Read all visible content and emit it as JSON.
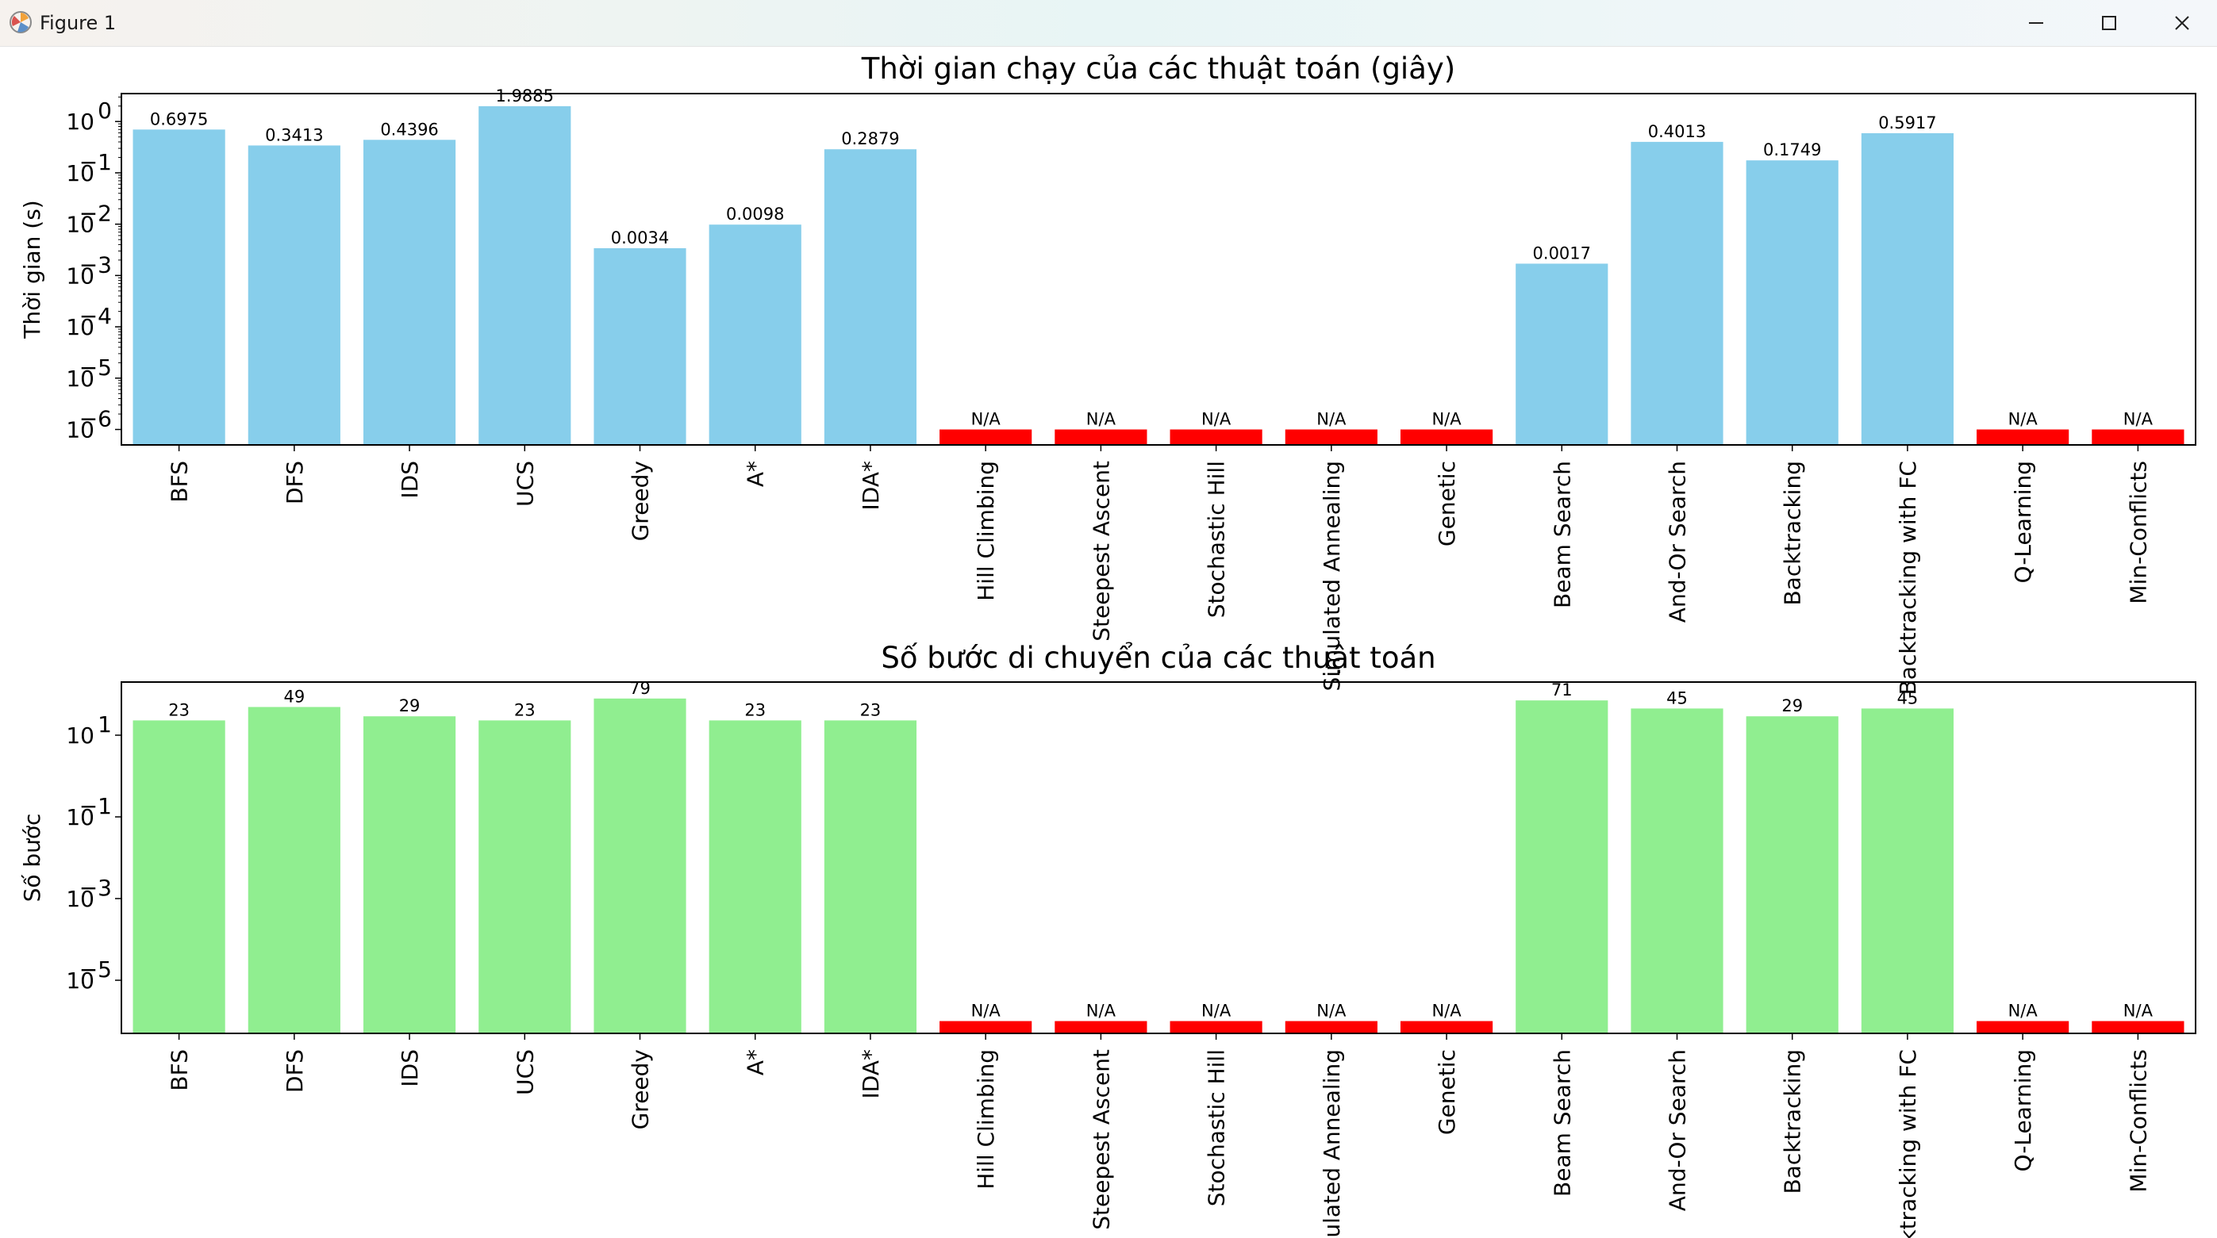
{
  "window": {
    "title": "Figure 1"
  },
  "colors": {
    "time_bar": "#87ceeb",
    "steps_bar": "#90ee90",
    "na_bar": "#ff0000"
  },
  "chart_data": [
    {
      "type": "bar",
      "title": "Thời gian chạy của các thuật toán (giây)",
      "xlabel": "",
      "ylabel": "Thời gian (s)",
      "yscale": "log",
      "ylim": [
        5e-07,
        3.5
      ],
      "yticks": [
        1e-06,
        1e-05,
        0.0001,
        0.001,
        0.01,
        0.1,
        1
      ],
      "ytick_labels": [
        {
          "base": "10",
          "exp": "−6"
        },
        {
          "base": "10",
          "exp": "−5"
        },
        {
          "base": "10",
          "exp": "−4"
        },
        {
          "base": "10",
          "exp": "−3"
        },
        {
          "base": "10",
          "exp": "−2"
        },
        {
          "base": "10",
          "exp": "−1"
        },
        {
          "base": "10",
          "exp": "0"
        }
      ],
      "categories": [
        "BFS",
        "DFS",
        "IDS",
        "UCS",
        "Greedy",
        "A*",
        "IDA*",
        "Hill Climbing",
        "Steepest Ascent",
        "Stochastic Hill",
        "Simulated Annealing",
        "Genetic",
        "Beam Search",
        "And-Or Search",
        "Backtracking",
        "Backtracking with FC",
        "Q-Learning",
        "Min-Conflicts"
      ],
      "values": [
        0.6975,
        0.3413,
        0.4396,
        1.9885,
        0.0034,
        0.0098,
        0.2879,
        1e-06,
        1e-06,
        1e-06,
        1e-06,
        1e-06,
        0.0017,
        0.4013,
        0.1749,
        0.5917,
        1e-06,
        1e-06
      ],
      "labels": [
        "0.6975",
        "0.3413",
        "0.4396",
        "1.9885",
        "0.0034",
        "0.0098",
        "0.2879",
        "N/A",
        "N/A",
        "N/A",
        "N/A",
        "N/A",
        "0.0017",
        "0.4013",
        "0.1749",
        "0.5917",
        "N/A",
        "N/A"
      ],
      "na": [
        false,
        false,
        false,
        false,
        false,
        false,
        false,
        true,
        true,
        true,
        true,
        true,
        false,
        false,
        false,
        false,
        true,
        true
      ]
    },
    {
      "type": "bar",
      "title": "Số bước di chuyển của các thuật toán",
      "xlabel": "",
      "ylabel": "Số bước",
      "yscale": "log",
      "ylim": [
        5e-07,
        200
      ],
      "yticks": [
        1e-05,
        0.001,
        0.1,
        10
      ],
      "ytick_labels": [
        {
          "base": "10",
          "exp": "−5"
        },
        {
          "base": "10",
          "exp": "−3"
        },
        {
          "base": "10",
          "exp": "−1"
        },
        {
          "base": "10",
          "exp": "1"
        }
      ],
      "categories": [
        "BFS",
        "DFS",
        "IDS",
        "UCS",
        "Greedy",
        "A*",
        "IDA*",
        "Hill Climbing",
        "Steepest Ascent",
        "Stochastic Hill",
        "Simulated Annealing",
        "Genetic",
        "Beam Search",
        "And-Or Search",
        "Backtracking",
        "Backtracking with FC",
        "Q-Learning",
        "Min-Conflicts"
      ],
      "values": [
        23,
        49,
        29,
        23,
        79,
        23,
        23,
        1e-06,
        1e-06,
        1e-06,
        1e-06,
        1e-06,
        71,
        45,
        29,
        45,
        1e-06,
        1e-06
      ],
      "labels": [
        "23",
        "49",
        "29",
        "23",
        "79",
        "23",
        "23",
        "N/A",
        "N/A",
        "N/A",
        "N/A",
        "N/A",
        "71",
        "45",
        "29",
        "45",
        "N/A",
        "N/A"
      ],
      "na": [
        false,
        false,
        false,
        false,
        false,
        false,
        false,
        true,
        true,
        true,
        true,
        true,
        false,
        false,
        false,
        false,
        true,
        true
      ]
    }
  ]
}
